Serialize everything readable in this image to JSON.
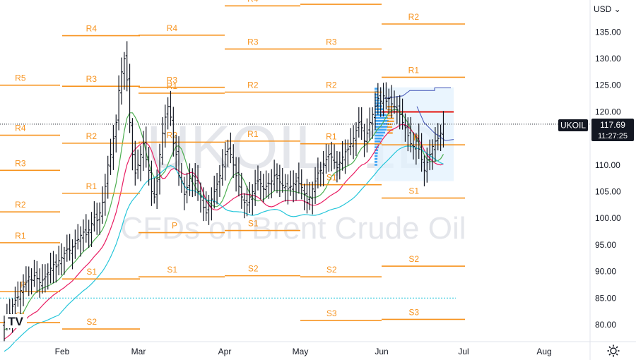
{
  "toolbar": {
    "currency": "USD ⌄"
  },
  "symbol": {
    "ticker": "UKOIL",
    "last_price": "117.69",
    "countdown": "11:27:25"
  },
  "watermark": {
    "line1": "UKOIL, 1D",
    "line2": "CFDs on Brent Crude Oil"
  },
  "icons": {
    "settings": "gear-icon",
    "brand": "tradingview-logo"
  },
  "colors": {
    "bars": "#131722",
    "pivot": "#f7931e",
    "sma_fast": "#4caf50",
    "sma_mid": "#e91e63",
    "sma_slow": "#26c6da",
    "poc": "#e53935",
    "profile": "#2196f3",
    "last_price_bg": "#131722"
  },
  "chart_data": {
    "type": "ohlc",
    "y_axis": {
      "ticks": [
        "135.00",
        "130.00",
        "125.00",
        "120.00",
        "115.00",
        "110.00",
        "105.00",
        "100.00",
        "95.00",
        "90.00",
        "85.00",
        "80.00"
      ],
      "ylim": [
        77.6,
        140.3
      ]
    },
    "x_axis": {
      "ticks": [
        "Feb",
        "Mar",
        "Apr",
        "May",
        "Jun",
        "Jul",
        "Aug"
      ]
    },
    "last_price": 117.69,
    "bars_close": [
      80.5,
      81.2,
      82.0,
      83.5,
      84.6,
      85.2,
      86.4,
      87.1,
      88.0,
      89.0,
      88.4,
      89.2,
      88.7,
      87.9,
      88.4,
      89.0,
      89.8,
      90.6,
      91.3,
      90.9,
      92.0,
      92.6,
      93.4,
      94.2,
      94.0,
      94.6,
      95.3,
      96.0,
      96.8,
      97.4,
      96.9,
      97.8,
      99.0,
      100.2,
      99.6,
      101.0,
      103.0,
      106.0,
      110.0,
      112.0,
      115.0,
      118.0,
      124.0,
      127.5,
      130.0,
      126.0,
      118.0,
      112.0,
      108.5,
      110.0,
      112.0,
      114.0,
      111.0,
      109.0,
      105.0,
      104.0,
      107.0,
      112.0,
      116.0,
      119.0,
      121.0,
      119.0,
      114.0,
      112.0,
      108.0,
      107.0,
      104.5,
      105.8,
      107.5,
      108.0,
      106.5,
      105.0,
      104.0,
      102.0,
      101.0,
      102.5,
      103.6,
      105.0,
      106.4,
      108.0,
      110.0,
      112.0,
      113.0,
      112.0,
      110.0,
      108.0,
      106.0,
      104.0,
      103.0,
      102.5,
      104.0,
      105.0,
      106.5,
      107.0,
      106.5,
      105.5,
      106.0,
      106.5,
      107.0,
      108.0,
      107.5,
      106.8,
      106.2,
      106.0,
      105.5,
      106.0,
      106.5,
      107.0,
      106.5,
      105.8,
      104.5,
      103.0,
      104.0,
      105.5,
      107.0,
      108.5,
      109.0,
      110.2,
      111.0,
      112.0,
      111.5,
      110.5,
      109.5,
      110.5,
      111.5,
      112.5,
      113.0,
      114.0,
      115.0,
      116.5,
      118.0,
      117.0,
      114.5,
      116.0,
      118.0,
      119.5,
      121.0,
      122.5,
      122.0,
      123.0,
      122.0,
      122.5,
      121.5,
      121.0,
      120.5,
      119.5,
      118.0,
      117.0,
      115.5,
      114.0,
      113.5,
      114.5,
      113.0,
      111.0,
      109.0,
      110.5,
      112.0,
      113.5,
      114.5,
      115.0,
      116.0,
      117.69
    ],
    "pivot_periods": [
      {
        "start": "Jan",
        "levels": {
          "S1": 80.4,
          "P": 86.2,
          "R1": 95.4,
          "R2": 101.2,
          "R3": 109.0,
          "R4": 115.6,
          "R5": 125.0
        }
      },
      {
        "start": "Feb",
        "levels": {
          "S2": 79.2,
          "S1": 88.6,
          "R1": 104.7,
          "R2": 114.1,
          "R3": 124.8,
          "R4": 134.3
        }
      },
      {
        "start": "Mar",
        "levels": {
          "S1": 89.0,
          "P": 97.3,
          "R1": 123.5,
          "R2": 114.3,
          "R3": 124.6,
          "R4": 134.4
        }
      },
      {
        "start": "Apr",
        "levels": {
          "S2": 89.2,
          "S1": 97.7,
          "R1": 114.5,
          "R2": 123.7,
          "R3": 131.8,
          "R4": 139.9
        }
      },
      {
        "start": "May",
        "levels": {
          "S3": 80.8,
          "S2": 89.0,
          "S1": 106.3,
          "R1": 114.0,
          "R2": 123.7,
          "R3": 131.8,
          "R4": 140.2
        }
      },
      {
        "start": "Jun",
        "levels": {
          "S3": 81.0,
          "S2": 91.0,
          "S1": 103.8,
          "P": 113.8,
          "R1": 126.5,
          "R2": 136.5
        }
      }
    ],
    "volume_profile": {
      "poc": 120.0,
      "va_high": 124.6,
      "va_low": 107.0
    },
    "horizontal_lines": [
      117.69,
      85.0
    ]
  }
}
